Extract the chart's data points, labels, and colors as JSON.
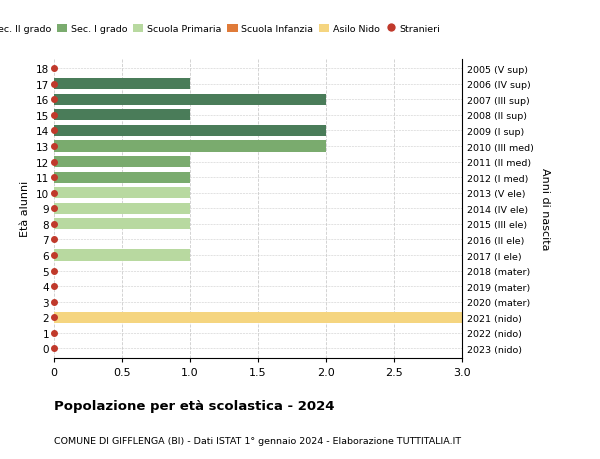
{
  "ages": [
    18,
    17,
    16,
    15,
    14,
    13,
    12,
    11,
    10,
    9,
    8,
    7,
    6,
    5,
    4,
    3,
    2,
    1,
    0
  ],
  "right_labels": [
    "2005 (V sup)",
    "2006 (IV sup)",
    "2007 (III sup)",
    "2008 (II sup)",
    "2009 (I sup)",
    "2010 (III med)",
    "2011 (II med)",
    "2012 (I med)",
    "2013 (V ele)",
    "2014 (IV ele)",
    "2015 (III ele)",
    "2016 (II ele)",
    "2017 (I ele)",
    "2018 (mater)",
    "2019 (mater)",
    "2020 (mater)",
    "2021 (nido)",
    "2022 (nido)",
    "2023 (nido)"
  ],
  "bar_values": [
    0,
    1,
    2,
    1,
    2,
    2,
    1,
    1,
    1,
    1,
    1,
    0,
    1,
    0,
    0,
    0,
    3,
    0,
    0
  ],
  "bar_colors": [
    "#4a7c59",
    "#4a7c59",
    "#4a7c59",
    "#4a7c59",
    "#4a7c59",
    "#7aab6e",
    "#7aab6e",
    "#7aab6e",
    "#b8d9a0",
    "#b8d9a0",
    "#b8d9a0",
    "#b8d9a0",
    "#b8d9a0",
    "#e07b39",
    "#e07b39",
    "#e07b39",
    "#f5d580",
    "#f5d580",
    "#f5d580"
  ],
  "dot_color": "#c0392b",
  "dot_size": 4,
  "xlim": [
    0,
    3.0
  ],
  "xticks": [
    0,
    0.5,
    1.0,
    1.5,
    2.0,
    2.5,
    3.0
  ],
  "xtick_labels": [
    "0",
    "0.5",
    "1.0",
    "1.5",
    "2.0",
    "2.5",
    "3.0"
  ],
  "ylabel": "Età alunni",
  "right_ylabel": "Anni di nascita",
  "title": "Popolazione per età scolastica - 2024",
  "subtitle": "COMUNE DI GIFFLENGA (BI) - Dati ISTAT 1° gennaio 2024 - Elaborazione TUTTITALIA.IT",
  "legend_items": [
    {
      "label": "Sec. II grado",
      "color": "#4a7c59"
    },
    {
      "label": "Sec. I grado",
      "color": "#7aab6e"
    },
    {
      "label": "Scuola Primaria",
      "color": "#b8d9a0"
    },
    {
      "label": "Scuola Infanzia",
      "color": "#e07b39"
    },
    {
      "label": "Asilo Nido",
      "color": "#f5d580"
    },
    {
      "label": "Stranieri",
      "color": "#c0392b"
    }
  ],
  "bg_color": "#ffffff",
  "grid_color": "#cccccc",
  "bar_height": 0.72
}
